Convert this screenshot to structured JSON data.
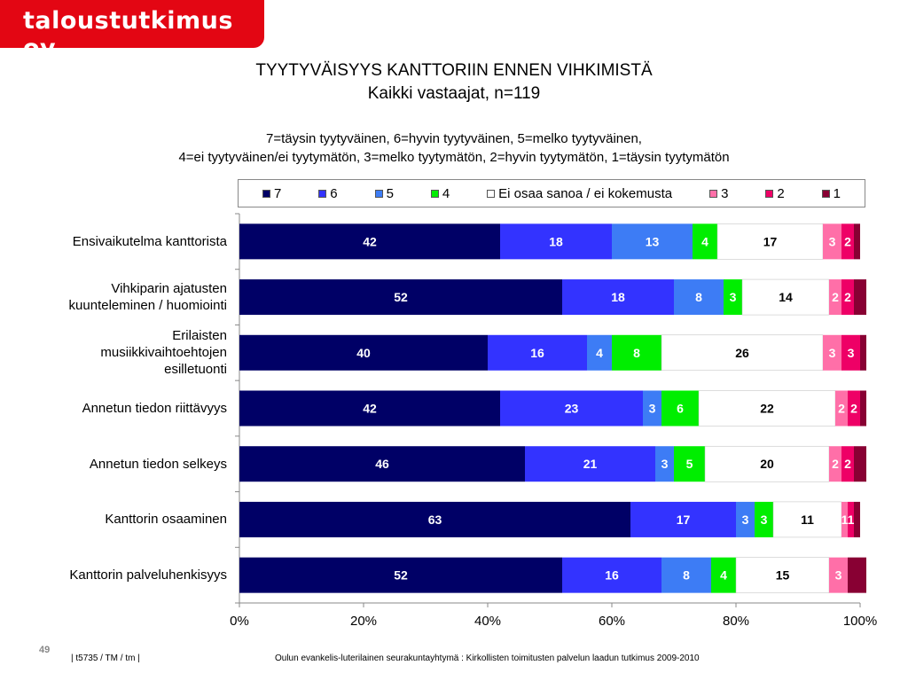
{
  "brand": "taloustutkimus oy",
  "title_line1": "TYYTYVÄISYYS  KANTTORIIN ENNEN VIHKIMISTÄ",
  "title_line2": "Kaikki  vastaajat, n=119",
  "scale_line1": "7=täysin tyytyväinen, 6=hyvin tyytyväinen, 5=melko tyytyväinen,",
  "scale_line2": "4=ei tyytyväinen/ei tyytymätön, 3=melko tyytymätön, 2=hyvin tyytymätön, 1=täysin tyytymätön",
  "legend": [
    {
      "label": "7",
      "color": "#000066"
    },
    {
      "label": "6",
      "color": "#3333ff"
    },
    {
      "label": "5",
      "color": "#3d7cf5"
    },
    {
      "label": "4",
      "color": "#00ee00"
    },
    {
      "label": "Ei osaa sanoa / ei kokemusta",
      "color": "#ffffff"
    },
    {
      "label": "3",
      "color": "#ff6fa8"
    },
    {
      "label": "2",
      "color": "#ee0066"
    },
    {
      "label": "1",
      "color": "#880033"
    }
  ],
  "chart_data": {
    "type": "bar",
    "orientation": "horizontal",
    "stacked": "percent",
    "categories": [
      "Ensivaikutelma kanttorista",
      "Vihkiparin ajatusten kuunteleminen / huomiointi",
      "Erilaisten musiikkivaihtoehtojen esilletuonti",
      "Annetun tiedon riittävyys",
      "Annetun tiedon selkeys",
      "Kanttorin osaaminen",
      "Kanttorin palveluhenkisyys"
    ],
    "category_lines": [
      [
        "Ensivaikutelma kanttorista"
      ],
      [
        "Vihkiparin ajatusten",
        "kuunteleminen / huomiointi"
      ],
      [
        "Erilaisten",
        "musiikkivaihtoehtojen",
        "esilletuonti"
      ],
      [
        "Annetun tiedon riittävyys"
      ],
      [
        "Annetun tiedon selkeys"
      ],
      [
        "Kanttorin osaaminen"
      ],
      [
        "Kanttorin palveluhenkisyys"
      ]
    ],
    "series": [
      {
        "name": "7",
        "color": "#000066",
        "label_color": "#ffffff",
        "values": [
          42,
          52,
          40,
          42,
          46,
          63,
          52
        ]
      },
      {
        "name": "6",
        "color": "#3333ff",
        "label_color": "#ffffff",
        "values": [
          18,
          18,
          16,
          23,
          21,
          17,
          16
        ]
      },
      {
        "name": "5",
        "color": "#3d7cf5",
        "label_color": "#ffffff",
        "values": [
          13,
          8,
          4,
          3,
          3,
          3,
          8
        ]
      },
      {
        "name": "4",
        "color": "#00ee00",
        "label_color": "#ffffff",
        "values": [
          4,
          3,
          8,
          6,
          5,
          3,
          4
        ]
      },
      {
        "name": "Ei osaa sanoa / ei kokemusta",
        "color": "#ffffff",
        "label_color": "#000000",
        "values": [
          17,
          14,
          26,
          22,
          20,
          11,
          15
        ]
      },
      {
        "name": "3",
        "color": "#ff6fa8",
        "label_color": "#ffffff",
        "values": [
          3,
          2,
          3,
          2,
          2,
          1,
          3
        ]
      },
      {
        "name": "2",
        "color": "#ee0066",
        "label_color": "#ffffff",
        "values": [
          2,
          2,
          3,
          2,
          2,
          1,
          0
        ]
      },
      {
        "name": "1",
        "color": "#880033",
        "label_color": "#ffffff",
        "values": [
          1,
          2,
          1,
          1,
          2,
          1,
          3
        ]
      }
    ],
    "shown_labels": [
      [
        "42",
        "18",
        "13",
        "4",
        "17",
        "3",
        "2",
        ""
      ],
      [
        "52",
        "18",
        "8",
        "3",
        "14",
        "2",
        "2",
        ""
      ],
      [
        "40",
        "16",
        "4",
        "8",
        "26",
        "3",
        "3",
        ""
      ],
      [
        "42",
        "23",
        "3",
        "6",
        "22",
        "2",
        "2",
        ""
      ],
      [
        "46",
        "21",
        "3",
        "5",
        "20",
        "2",
        "2",
        ""
      ],
      [
        "63",
        "17",
        "3",
        "3",
        "11",
        "1",
        "1",
        ""
      ],
      [
        "52",
        "16",
        "8",
        "4",
        "15",
        "3",
        "",
        ""
      ]
    ],
    "xticks": [
      "0%",
      "20%",
      "40%",
      "60%",
      "80%",
      "100%"
    ],
    "xlim": [
      0,
      100
    ]
  },
  "footer_left": "|  t5735 / TM / tm |",
  "footer_center": "Oulun evankelis-luterilainen seurakuntayhtymä : Kirkollisten toimitusten palvelun laadun tutkimus 2009-2010",
  "page_number": "49"
}
